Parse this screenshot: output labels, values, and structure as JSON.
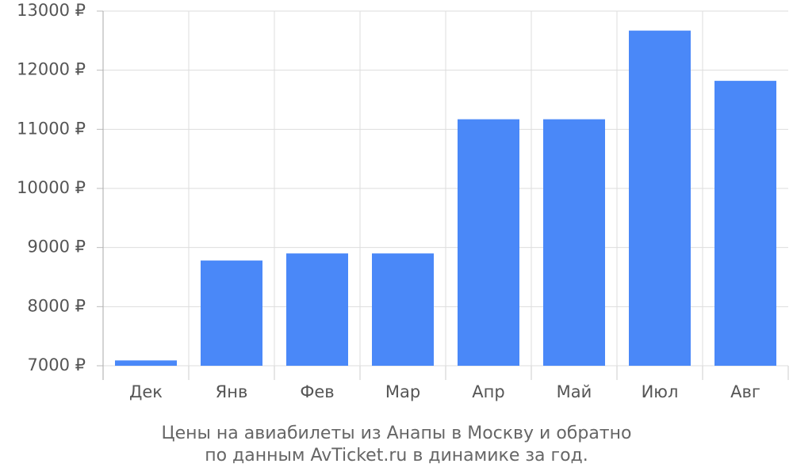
{
  "chart_data": {
    "type": "bar",
    "title": "Цены на авиабилеты из Анапы в Москву и обратно",
    "subtitle": "по данным AvTicket.ru в динамике за год.",
    "categories": [
      "Дек",
      "Янв",
      "Фев",
      "Мар",
      "Апр",
      "Май",
      "Июл",
      "Авг"
    ],
    "values": [
      7090,
      8780,
      8900,
      8900,
      11170,
      11170,
      12670,
      11820
    ],
    "color": "#4a88f8",
    "ylim": [
      7000,
      13000
    ],
    "yticks": [
      {
        "value": 7000,
        "label": "7000 ₽"
      },
      {
        "value": 8000,
        "label": "8000 ₽"
      },
      {
        "value": 9000,
        "label": "9000 ₽"
      },
      {
        "value": 10000,
        "label": "10000 ₽"
      },
      {
        "value": 11000,
        "label": "11000 ₽"
      },
      {
        "value": 12000,
        "label": "12000 ₽"
      },
      {
        "value": 13000,
        "label": "13000 ₽"
      }
    ],
    "grid": true
  }
}
